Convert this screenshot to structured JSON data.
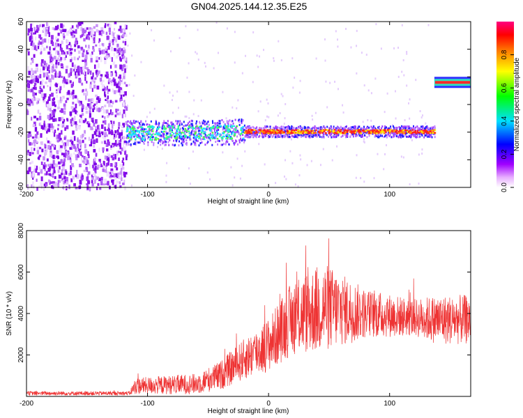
{
  "title": "GN04.2025.144.12.35.E25",
  "chart_data": [
    {
      "type": "heatmap",
      "name": "spectrogram",
      "xlabel": "Height of straight line (km)",
      "ylabel": "Frequency (Hz)",
      "xlim": [
        -200,
        167
      ],
      "ylim": [
        -60,
        60
      ],
      "xticks": [
        "-200",
        "-100",
        "0",
        "100"
      ],
      "yticks": [
        "-60",
        "-40",
        "-20",
        "0",
        "20",
        "40",
        "60"
      ],
      "colorbar": {
        "label": "Normalized spectral amplitude",
        "range": [
          0,
          1
        ],
        "ticks": [
          "0.0",
          "0.2",
          "0.4",
          "0.6",
          "0.8"
        ],
        "colors": [
          "#ffffff",
          "#ff00ff",
          "#8000ff",
          "#0000ff",
          "#00ffff",
          "#00ff00",
          "#ffff00",
          "#ff8000",
          "#ff0000",
          "#ff0080"
        ]
      },
      "features": {
        "noise_region_x": [
          -200,
          -118
        ],
        "main_track": [
          {
            "x": -118,
            "freq": -20
          },
          {
            "x": -60,
            "freq": -20
          },
          {
            "x": -20,
            "freq": -19
          },
          {
            "x": 0,
            "freq": -19
          },
          {
            "x": 50,
            "freq": -19
          },
          {
            "x": 100,
            "freq": -19
          },
          {
            "x": 137,
            "freq": -19
          }
        ],
        "upper_track": [
          {
            "x": 137,
            "freq": 16
          },
          {
            "x": 167,
            "freq": 16
          }
        ]
      }
    },
    {
      "type": "line",
      "name": "snr",
      "xlabel": "Height of straight line (km)",
      "ylabel": "SNR (10 * v/v)",
      "xlim": [
        -200,
        167
      ],
      "ylim": [
        0,
        8000
      ],
      "xticks": [
        "-200",
        "-100",
        "0",
        "100"
      ],
      "yticks": [
        "2000",
        "4000",
        "6000",
        "8000"
      ],
      "color": "#ee3333",
      "envelope": [
        {
          "x": -200,
          "mean": 150,
          "amp": 100
        },
        {
          "x": -115,
          "mean": 150,
          "amp": 100
        },
        {
          "x": -110,
          "mean": 500,
          "amp": 400
        },
        {
          "x": -60,
          "mean": 600,
          "amp": 500
        },
        {
          "x": -40,
          "mean": 1000,
          "amp": 700
        },
        {
          "x": -20,
          "mean": 1800,
          "amp": 1000
        },
        {
          "x": 0,
          "mean": 2500,
          "amp": 1300
        },
        {
          "x": 20,
          "mean": 3800,
          "amp": 1800
        },
        {
          "x": 45,
          "mean": 4300,
          "amp": 2200
        },
        {
          "x": 80,
          "mean": 4000,
          "amp": 1200
        },
        {
          "x": 120,
          "mean": 3800,
          "amp": 900
        },
        {
          "x": 140,
          "mean": 3700,
          "amp": 1200
        },
        {
          "x": 167,
          "mean": 3700,
          "amp": 1200
        }
      ]
    }
  ]
}
